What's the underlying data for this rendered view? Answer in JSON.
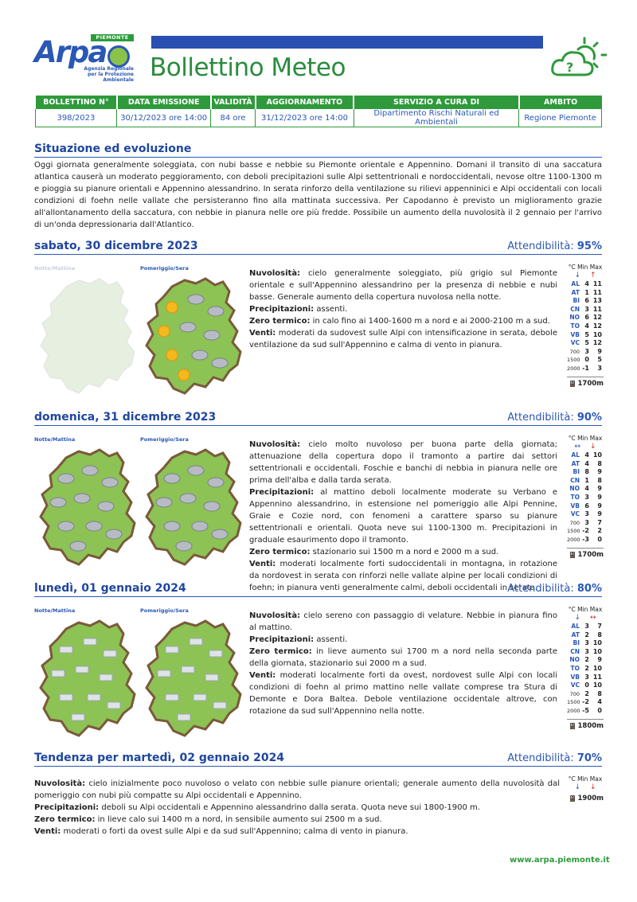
{
  "header": {
    "logo_badge": "PIEMONTE",
    "logo_word": "Arpa",
    "logo_sub1": "Agenzia Regionale",
    "logo_sub2": "per la Protezione Ambientale",
    "title": "Bollettino Meteo",
    "accent_blue": "#2a4fb3",
    "accent_green": "#2e9a3b"
  },
  "info": {
    "headers": [
      "BOLLETTINO N°",
      "DATA EMISSIONE",
      "VALIDITÀ",
      "AGGIORNAMENTO",
      "SERVIZIO A CURA DI",
      "AMBITO"
    ],
    "values": [
      "398/2023",
      "30/12/2023 ore 14:00",
      "84 ore",
      "31/12/2023 ore 14:00",
      "Dipartimento Rischi Naturali ed Ambientali",
      "Regione Piemonte"
    ]
  },
  "situazione": {
    "title": "Situazione ed evoluzione",
    "text": "Oggi giornata generalmente soleggiata, con nubi basse e nebbie su Piemonte orientale e Appennino. Domani il transito di una saccatura atlantica causerà un moderato peggioramento, con deboli precipitazioni sulle Alpi settentrionali e nordoccidentali, nevose oltre 1100-1300 m e pioggia su pianure orientali e Appennino alessandrino. In serata rinforzo della ventilazione su rilievi appenninici e Alpi occidentali con locali condizioni di foehn nelle vallate che persisteranno fino alla mattinata successiva. Per Capodanno è previsto un miglioramento grazie all'allontanamento della saccatura, con nebbie in pianura nelle ore più fredde. Possibile un aumento della nuvolosità il 2 gennaio per l'arrivo di un'onda depressionaria dall'Atlantico."
  },
  "temp_header": "°C Min Max",
  "labels": {
    "nuv": "Nuvolosità:",
    "prec": "Precipitazioni:",
    "zero": "Zero termico:",
    "venti": "Venti:",
    "notte": "Notte/Mattina",
    "pomeriggio": "Pomeriggio/Sera",
    "attend": "Attendibilità:"
  },
  "days": [
    {
      "title": "sabato, 30 dicembre 2023",
      "attend": "95%",
      "nuv": "cielo generalmente soleggiato, più grigio sul Piemonte orientale e sull'Appennino alessandrino per la presenza di nebbie e nubi basse. Generale aumento della copertura nuvolosa nella notte.",
      "prec": "assenti.",
      "zero": "in calo fino ai 1400-1600 m a nord e ai 2000-2100 m a sud.",
      "venti": "moderati da sudovest sulle Alpi con intensificazione in serata, debole ventilazione da sud sull'Appennino e calma di vento in pianura.",
      "arrows": [
        "↓",
        "↑"
      ],
      "temps": [
        [
          "AL",
          "4",
          "11"
        ],
        [
          "AT",
          "1",
          "11"
        ],
        [
          "BI",
          "6",
          "13"
        ],
        [
          "CN",
          "3",
          "11"
        ],
        [
          "NO",
          "6",
          "12"
        ],
        [
          "TO",
          "4",
          "12"
        ],
        [
          "VB",
          "5",
          "10"
        ],
        [
          "VC",
          "5",
          "12"
        ],
        [
          "700",
          "3",
          "9"
        ],
        [
          "1500",
          "0",
          "5"
        ],
        [
          "2000",
          "-1",
          "3"
        ]
      ],
      "freezing": "1700m"
    },
    {
      "title": "domenica, 31 dicembre 2023",
      "attend": "90%",
      "nuv": "cielo molto nuvoloso per buona parte della giornata; attenuazione della copertura dopo il tramonto a partire dai settori settentrionali e occidentali. Foschie e banchi di nebbia in pianura nelle ore prima dell'alba e dalla tarda serata.",
      "prec": "al mattino deboli localmente moderate su Verbano e Appennino alessandrino, in estensione nel pomeriggio alle Alpi Pennine, Graie e Cozie nord, con fenomeni a carattere sparso su pianure settentrionali e orientali. Quota neve sui 1100-1300 m. Precipitazioni in graduale esaurimento dopo il tramonto.",
      "zero": "stazionario sui 1500 m a nord e 2000 m a sud.",
      "venti": "moderati localmente forti sudoccidentali in montagna, in rotazione da nordovest in serata con rinforzi nelle vallate alpine per locali condizioni di foehn; in pianura venti generalmente calmi, deboli occidentali in serata.",
      "arrows": [
        "↔",
        "↓"
      ],
      "temps": [
        [
          "AL",
          "4",
          "10"
        ],
        [
          "AT",
          "4",
          "8"
        ],
        [
          "BI",
          "8",
          "9"
        ],
        [
          "CN",
          "1",
          "8"
        ],
        [
          "NO",
          "4",
          "9"
        ],
        [
          "TO",
          "3",
          "9"
        ],
        [
          "VB",
          "6",
          "9"
        ],
        [
          "VC",
          "3",
          "9"
        ],
        [
          "700",
          "3",
          "7"
        ],
        [
          "1500",
          "-2",
          "2"
        ],
        [
          "2000",
          "-3",
          "0"
        ]
      ],
      "freezing": "1700m"
    },
    {
      "title": "lunedì, 01 gennaio 2024",
      "attend": "80%",
      "nuv": "cielo sereno con passaggio di velature. Nebbie in pianura fino al mattino.",
      "prec": "assenti.",
      "zero": "in lieve aumento sui 1700 m a nord nella seconda parte della giornata, stazionario sui 2000 m a sud.",
      "venti": "moderati localmente forti da ovest, nordovest sulle Alpi con locali condizioni di foehn al primo mattino nelle vallate comprese tra Stura di Demonte e Dora Baltea. Debole ventilazione occidentale altrove, con rotazione da sud sull'Appennino nella notte.",
      "arrows": [
        "↓",
        "↔"
      ],
      "temps": [
        [
          "AL",
          "3",
          "7"
        ],
        [
          "AT",
          "2",
          "8"
        ],
        [
          "BI",
          "3",
          "10"
        ],
        [
          "CN",
          "3",
          "10"
        ],
        [
          "NO",
          "2",
          "9"
        ],
        [
          "TO",
          "2",
          "10"
        ],
        [
          "VB",
          "3",
          "11"
        ],
        [
          "VC",
          "0",
          "10"
        ],
        [
          "700",
          "2",
          "8"
        ],
        [
          "1500",
          "-2",
          "4"
        ],
        [
          "2000",
          "-5",
          "0"
        ]
      ],
      "freezing": "1800m"
    }
  ],
  "tendenza": {
    "title": "Tendenza per martedì, 02 gennaio 2024",
    "attend": "70%",
    "nuv": "cielo inizialmente poco nuvoloso o velato con nebbie sulle pianure orientali; generale aumento della nuvolosità dal pomeriggio con nubi più compatte su Alpi occidentali e Appennino.",
    "prec": "deboli su Alpi occidentali e Appennino alessandrino dalla serata. Quota neve sui 1800-1900 m.",
    "zero": "in lieve calo sui 1400 m a nord, in sensibile aumento sui 2500 m a sud.",
    "venti": "moderati o forti da ovest sulle Alpi e da sud sull'Appennino; calma di vento in pianura.",
    "arrows": [
      "↓",
      "↓"
    ],
    "freezing": "1900m"
  },
  "footer": {
    "url": "www.arpa.piemonte.it"
  }
}
